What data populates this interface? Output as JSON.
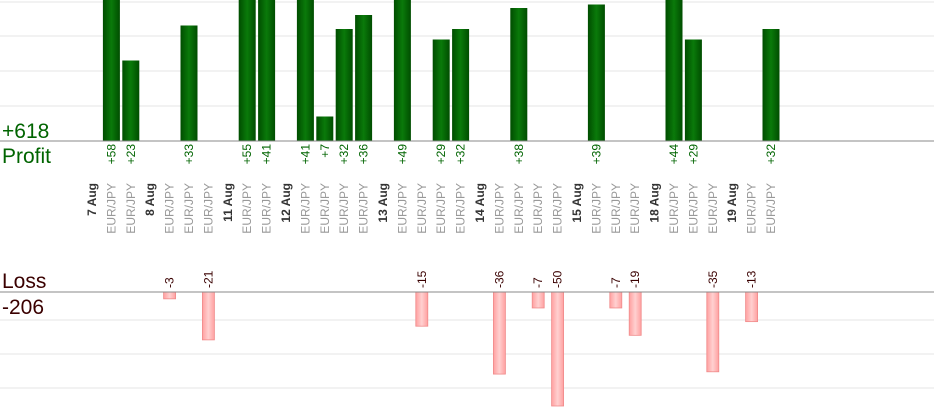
{
  "chart_data": {
    "type": "bar",
    "profit": {
      "label": "Profit",
      "total": "+618",
      "color": "#006400",
      "trades": [
        {
          "date": "7 Aug",
          "pair": "EUR/JPY",
          "value": 58,
          "label": "+58"
        },
        {
          "date": "7 Aug",
          "pair": "EUR/JPY",
          "value": 23,
          "label": "+23"
        },
        {
          "date": "8 Aug",
          "pair": "EUR/JPY",
          "value": 33,
          "label": "+33"
        },
        {
          "date": "11 Aug",
          "pair": "EUR/JPY",
          "value": 55,
          "label": "+55"
        },
        {
          "date": "11 Aug",
          "pair": "EUR/JPY",
          "value": 41,
          "label": "+41"
        },
        {
          "date": "12 Aug",
          "pair": "EUR/JPY",
          "value": 41,
          "label": "+41"
        },
        {
          "date": "12 Aug",
          "pair": "EUR/JPY",
          "value": 7,
          "label": "+7"
        },
        {
          "date": "12 Aug",
          "pair": "EUR/JPY",
          "value": 32,
          "label": "+32"
        },
        {
          "date": "12 Aug",
          "pair": "EUR/JPY",
          "value": 36,
          "label": "+36"
        },
        {
          "date": "13 Aug",
          "pair": "EUR/JPY",
          "value": 49,
          "label": "+49"
        },
        {
          "date": "13 Aug",
          "pair": "EUR/JPY",
          "value": 29,
          "label": "+29"
        },
        {
          "date": "13 Aug",
          "pair": "EUR/JPY",
          "value": 32,
          "label": "+32"
        },
        {
          "date": "14 Aug",
          "pair": "EUR/JPY",
          "value": 38,
          "label": "+38"
        },
        {
          "date": "15 Aug",
          "pair": "EUR/JPY",
          "value": 39,
          "label": "+39"
        },
        {
          "date": "18 Aug",
          "pair": "EUR/JPY",
          "value": 44,
          "label": "+44"
        },
        {
          "date": "18 Aug",
          "pair": "EUR/JPY",
          "value": 29,
          "label": "+29"
        },
        {
          "date": "19 Aug",
          "pair": "EUR/JPY",
          "value": 32,
          "label": "+32"
        }
      ]
    },
    "loss": {
      "label": "Loss",
      "total": "-206",
      "color": "#ffb6b6",
      "trades": [
        {
          "date": "8 Aug",
          "pair": "EUR/JPY",
          "value": -3,
          "label": "-3"
        },
        {
          "date": "8 Aug",
          "pair": "EUR/JPY",
          "value": -21,
          "label": "-21"
        },
        {
          "date": "13 Aug",
          "pair": "EUR/JPY",
          "value": -15,
          "label": "-15"
        },
        {
          "date": "14 Aug",
          "pair": "EUR/JPY",
          "value": -36,
          "label": "-36"
        },
        {
          "date": "14 Aug",
          "pair": "EUR/JPY",
          "value": -7,
          "label": "-7"
        },
        {
          "date": "14 Aug",
          "pair": "EUR/JPY",
          "value": -50,
          "label": "-50"
        },
        {
          "date": "15 Aug",
          "pair": "EUR/JPY",
          "value": -7,
          "label": "-7"
        },
        {
          "date": "15 Aug",
          "pair": "EUR/JPY",
          "value": -19,
          "label": "-19"
        },
        {
          "date": "18 Aug",
          "pair": "EUR/JPY",
          "value": -35,
          "label": "-35"
        },
        {
          "date": "19 Aug",
          "pair": "EUR/JPY",
          "value": -13,
          "label": "-13"
        }
      ]
    },
    "columns": [
      {
        "kind": "date",
        "text": "7 Aug"
      },
      {
        "kind": "trade",
        "text": "EUR/JPY",
        "side": "profit",
        "index": 0
      },
      {
        "kind": "trade",
        "text": "EUR/JPY",
        "side": "profit",
        "index": 1
      },
      {
        "kind": "date",
        "text": "8 Aug"
      },
      {
        "kind": "trade",
        "text": "EUR/JPY",
        "side": "loss",
        "index": 0
      },
      {
        "kind": "trade",
        "text": "EUR/JPY",
        "side": "profit",
        "index": 2
      },
      {
        "kind": "trade",
        "text": "EUR/JPY",
        "side": "loss",
        "index": 1
      },
      {
        "kind": "date",
        "text": "11 Aug"
      },
      {
        "kind": "trade",
        "text": "EUR/JPY",
        "side": "profit",
        "index": 3
      },
      {
        "kind": "trade",
        "text": "EUR/JPY",
        "side": "profit",
        "index": 4
      },
      {
        "kind": "date",
        "text": "12 Aug"
      },
      {
        "kind": "trade",
        "text": "EUR/JPY",
        "side": "profit",
        "index": 5
      },
      {
        "kind": "trade",
        "text": "EUR/JPY",
        "side": "profit",
        "index": 6
      },
      {
        "kind": "trade",
        "text": "EUR/JPY",
        "side": "profit",
        "index": 7
      },
      {
        "kind": "trade",
        "text": "EUR/JPY",
        "side": "profit",
        "index": 8
      },
      {
        "kind": "date",
        "text": "13 Aug"
      },
      {
        "kind": "trade",
        "text": "EUR/JPY",
        "side": "profit",
        "index": 9
      },
      {
        "kind": "trade",
        "text": "EUR/JPY",
        "side": "loss",
        "index": 2
      },
      {
        "kind": "trade",
        "text": "EUR/JPY",
        "side": "profit",
        "index": 10
      },
      {
        "kind": "trade",
        "text": "EUR/JPY",
        "side": "profit",
        "index": 11
      },
      {
        "kind": "date",
        "text": "14 Aug"
      },
      {
        "kind": "trade",
        "text": "EUR/JPY",
        "side": "loss",
        "index": 3
      },
      {
        "kind": "trade",
        "text": "EUR/JPY",
        "side": "profit",
        "index": 12
      },
      {
        "kind": "trade",
        "text": "EUR/JPY",
        "side": "loss",
        "index": 4
      },
      {
        "kind": "trade",
        "text": "EUR/JPY",
        "side": "loss",
        "index": 5
      },
      {
        "kind": "date",
        "text": "15 Aug"
      },
      {
        "kind": "trade",
        "text": "EUR/JPY",
        "side": "profit",
        "index": 13
      },
      {
        "kind": "trade",
        "text": "EUR/JPY",
        "side": "loss",
        "index": 6
      },
      {
        "kind": "trade",
        "text": "EUR/JPY",
        "side": "loss",
        "index": 7
      },
      {
        "kind": "date",
        "text": "18 Aug"
      },
      {
        "kind": "trade",
        "text": "EUR/JPY",
        "side": "profit",
        "index": 14
      },
      {
        "kind": "trade",
        "text": "EUR/JPY",
        "side": "profit",
        "index": 15
      },
      {
        "kind": "trade",
        "text": "EUR/JPY",
        "side": "loss",
        "index": 8
      },
      {
        "kind": "date",
        "text": "19 Aug"
      },
      {
        "kind": "trade",
        "text": "EUR/JPY",
        "side": "loss",
        "index": 9
      },
      {
        "kind": "trade",
        "text": "EUR/JPY",
        "side": "profit",
        "index": 16
      }
    ],
    "grid": true,
    "profit_ylim": [
      0,
      40
    ],
    "loss_ylim": [
      -50,
      0
    ]
  }
}
